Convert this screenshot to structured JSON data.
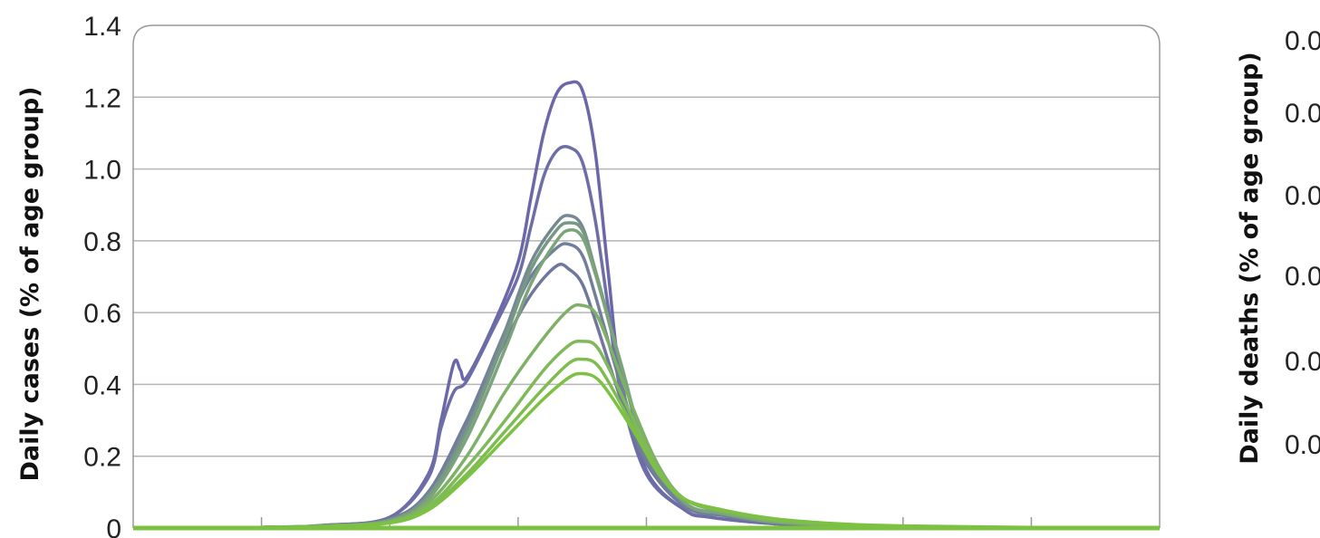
{
  "chart_data": [
    {
      "type": "line",
      "ylabel": "Daily cases (% of age group)",
      "xlabel": "",
      "ylim": [
        0,
        1.4
      ],
      "yticks": [
        0,
        0.2,
        0.4,
        0.6,
        0.8,
        1.0,
        1.2,
        1.4
      ],
      "ytick_labels": [
        "0",
        "0.2",
        "0.4",
        "0.6",
        "0.8",
        "1.0",
        "1.2",
        "1.4"
      ],
      "xlim": [
        0,
        8
      ],
      "x_tick_count": 7,
      "grid": true,
      "legend": "none",
      "palette_from": "#6b67a8",
      "palette_to": "#7cc142",
      "series": [
        {
          "color": "#6b67a8",
          "x": [
            0,
            1,
            1.5,
            2,
            2.3,
            2.4,
            2.5,
            2.55,
            2.6,
            2.8,
            3.0,
            3.1,
            3.2,
            3.3,
            3.4,
            3.5,
            3.6,
            3.7,
            3.8,
            4.0,
            4.3,
            4.5,
            5,
            5.5,
            6,
            7,
            8
          ],
          "values": [
            0,
            0.002,
            0.008,
            0.03,
            0.15,
            0.3,
            0.46,
            0.44,
            0.42,
            0.56,
            0.74,
            0.92,
            1.1,
            1.21,
            1.24,
            1.22,
            1.05,
            0.72,
            0.42,
            0.16,
            0.05,
            0.03,
            0.012,
            0.006,
            0.003,
            0.001,
            0
          ]
        },
        {
          "color": "#6e6ea6",
          "x": [
            0,
            1,
            1.5,
            2,
            2.3,
            2.4,
            2.5,
            2.6,
            2.8,
            3.0,
            3.1,
            3.2,
            3.3,
            3.4,
            3.5,
            3.6,
            3.7,
            3.8,
            4.0,
            4.3,
            4.5,
            5,
            5.5,
            6,
            7,
            8
          ],
          "values": [
            0,
            0.002,
            0.008,
            0.03,
            0.14,
            0.28,
            0.38,
            0.41,
            0.55,
            0.7,
            0.84,
            0.98,
            1.05,
            1.06,
            1.02,
            0.86,
            0.62,
            0.38,
            0.15,
            0.05,
            0.03,
            0.012,
            0.006,
            0.003,
            0.001,
            0
          ]
        },
        {
          "color": "#6f779e",
          "x": [
            0,
            1,
            1.5,
            2,
            2.3,
            2.6,
            2.9,
            3.1,
            3.3,
            3.4,
            3.5,
            3.6,
            3.8,
            4.0,
            4.3,
            4.6,
            5,
            5.5,
            6,
            7,
            8
          ],
          "values": [
            0,
            0.002,
            0.006,
            0.025,
            0.1,
            0.3,
            0.52,
            0.65,
            0.73,
            0.72,
            0.68,
            0.58,
            0.36,
            0.18,
            0.06,
            0.035,
            0.015,
            0.007,
            0.003,
            0.001,
            0
          ]
        },
        {
          "color": "#717f9a",
          "x": [
            0,
            1,
            1.5,
            2,
            2.3,
            2.6,
            2.9,
            3.1,
            3.3,
            3.4,
            3.5,
            3.6,
            3.8,
            4.0,
            4.3,
            4.6,
            5,
            5.5,
            6,
            7,
            8
          ],
          "values": [
            0,
            0.002,
            0.006,
            0.025,
            0.1,
            0.3,
            0.55,
            0.7,
            0.78,
            0.79,
            0.76,
            0.65,
            0.4,
            0.19,
            0.06,
            0.035,
            0.015,
            0.007,
            0.003,
            0.001,
            0
          ]
        },
        {
          "color": "#748a90",
          "x": [
            0,
            1,
            1.5,
            2,
            2.3,
            2.6,
            2.9,
            3.1,
            3.3,
            3.4,
            3.5,
            3.6,
            3.8,
            4.0,
            4.3,
            4.6,
            5,
            5.5,
            6,
            7,
            8
          ],
          "values": [
            0,
            0.002,
            0.006,
            0.022,
            0.09,
            0.28,
            0.55,
            0.74,
            0.85,
            0.87,
            0.84,
            0.72,
            0.45,
            0.21,
            0.07,
            0.04,
            0.016,
            0.008,
            0.004,
            0.001,
            0
          ]
        },
        {
          "color": "#789886",
          "x": [
            0,
            1,
            1.5,
            2,
            2.3,
            2.6,
            2.9,
            3.1,
            3.3,
            3.4,
            3.5,
            3.6,
            3.8,
            4.0,
            4.3,
            4.6,
            5,
            5.5,
            6,
            7,
            8
          ],
          "values": [
            0,
            0.002,
            0.006,
            0.022,
            0.09,
            0.27,
            0.53,
            0.72,
            0.83,
            0.85,
            0.83,
            0.72,
            0.46,
            0.22,
            0.07,
            0.04,
            0.017,
            0.008,
            0.004,
            0.001,
            0
          ]
        },
        {
          "color": "#7ca47a",
          "x": [
            0,
            1,
            1.5,
            2,
            2.3,
            2.6,
            2.9,
            3.1,
            3.3,
            3.4,
            3.5,
            3.6,
            3.8,
            4.0,
            4.3,
            4.6,
            5,
            5.5,
            6,
            7,
            8
          ],
          "values": [
            0,
            0.002,
            0.006,
            0.02,
            0.08,
            0.25,
            0.5,
            0.68,
            0.8,
            0.83,
            0.81,
            0.71,
            0.46,
            0.22,
            0.07,
            0.04,
            0.017,
            0.008,
            0.004,
            0.001,
            0
          ]
        },
        {
          "color": "#7eb066",
          "x": [
            0,
            1,
            1.5,
            2,
            2.3,
            2.6,
            2.9,
            3.2,
            3.4,
            3.5,
            3.6,
            3.7,
            3.9,
            4.1,
            4.3,
            4.6,
            5,
            5.5,
            6,
            7,
            8
          ],
          "values": [
            0,
            0.002,
            0.005,
            0.018,
            0.07,
            0.2,
            0.38,
            0.53,
            0.61,
            0.62,
            0.6,
            0.52,
            0.33,
            0.17,
            0.08,
            0.045,
            0.02,
            0.009,
            0.004,
            0.001,
            0
          ]
        },
        {
          "color": "#7fb95a",
          "x": [
            0,
            1,
            1.5,
            2,
            2.3,
            2.6,
            2.9,
            3.2,
            3.4,
            3.5,
            3.6,
            3.7,
            3.9,
            4.1,
            4.3,
            4.6,
            5,
            5.5,
            6,
            7,
            8
          ],
          "values": [
            0,
            0.002,
            0.005,
            0.016,
            0.06,
            0.17,
            0.3,
            0.44,
            0.51,
            0.52,
            0.51,
            0.45,
            0.3,
            0.16,
            0.08,
            0.048,
            0.022,
            0.01,
            0.005,
            0.001,
            0
          ]
        },
        {
          "color": "#7dbd4f",
          "x": [
            0,
            1,
            1.5,
            2,
            2.3,
            2.6,
            2.9,
            3.2,
            3.4,
            3.5,
            3.6,
            3.7,
            3.9,
            4.1,
            4.3,
            4.6,
            5,
            5.5,
            6,
            7,
            8
          ],
          "values": [
            0,
            0.002,
            0.005,
            0.015,
            0.055,
            0.15,
            0.27,
            0.39,
            0.46,
            0.47,
            0.46,
            0.41,
            0.28,
            0.15,
            0.08,
            0.05,
            0.024,
            0.011,
            0.005,
            0.001,
            0
          ]
        },
        {
          "color": "#7cc142",
          "x": [
            0,
            1,
            1.5,
            2,
            2.3,
            2.6,
            2.9,
            3.2,
            3.4,
            3.5,
            3.6,
            3.7,
            3.9,
            4.1,
            4.3,
            4.6,
            5,
            5.5,
            6,
            7,
            8
          ],
          "values": [
            0,
            0.002,
            0.005,
            0.014,
            0.05,
            0.14,
            0.25,
            0.36,
            0.42,
            0.43,
            0.42,
            0.38,
            0.27,
            0.15,
            0.08,
            0.05,
            0.026,
            0.012,
            0.006,
            0.002,
            0
          ]
        }
      ]
    },
    {
      "type": "line",
      "ylabel": "Daily deaths (% of age group)",
      "yticks_visible": 6,
      "ytick_labels_partial": [
        "0.0",
        "0.0",
        "0.0",
        "0.0",
        "0.0",
        "0.0"
      ],
      "series": []
    }
  ]
}
